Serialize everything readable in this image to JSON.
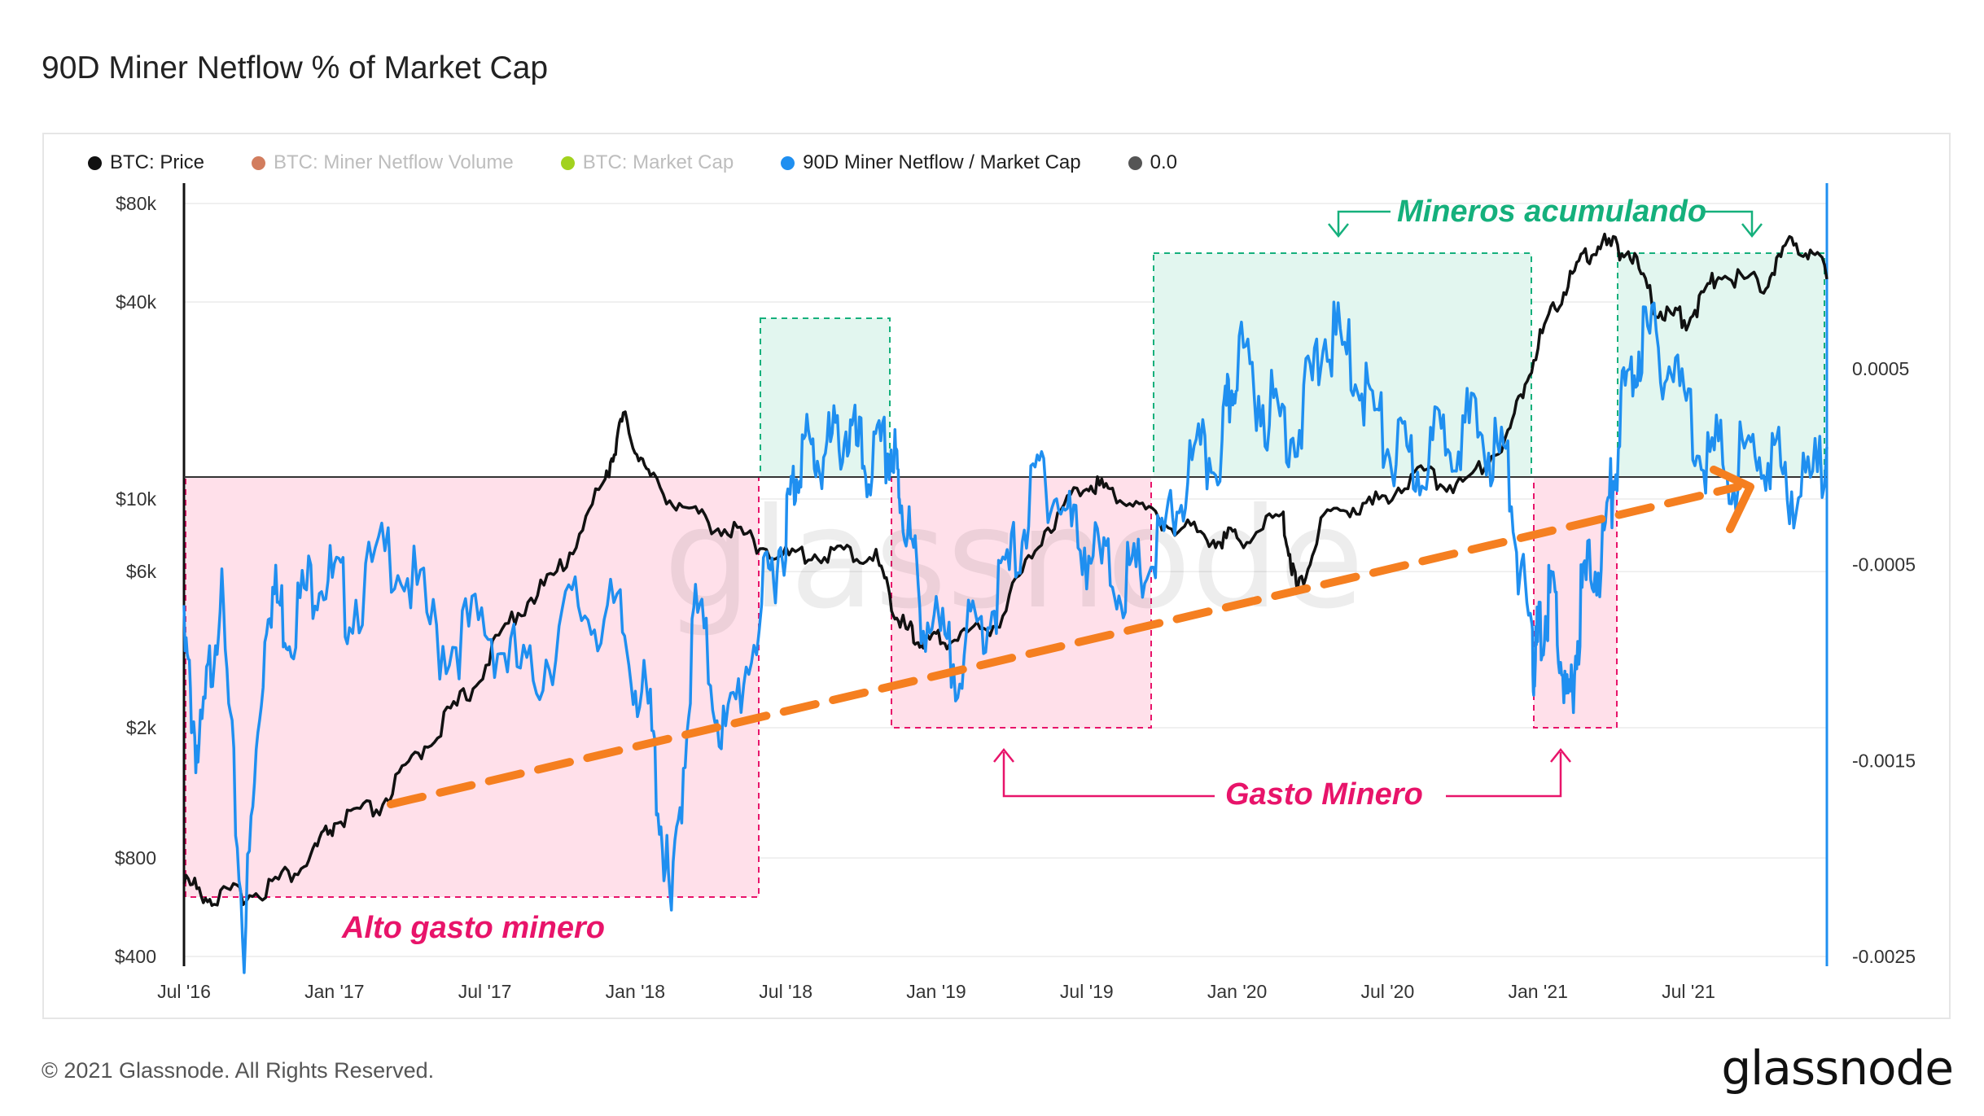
{
  "title": "90D Miner Netflow % of Market Cap",
  "legend": [
    {
      "label": "BTC: Price",
      "color": "#111111",
      "faded": false
    },
    {
      "label": "BTC: Miner Netflow Volume",
      "color": "#d27d5e",
      "faded": true
    },
    {
      "label": "BTC: Market Cap",
      "color": "#a2d21e",
      "faded": true
    },
    {
      "label": "90D Miner Netflow / Market Cap",
      "color": "#1f8ff0",
      "faded": false
    },
    {
      "label": "0.0",
      "color": "#555555",
      "faded": false
    }
  ],
  "footer": "© 2021 Glassnode. All Rights Reserved.",
  "brand": "glassnode",
  "watermark": "glassnode",
  "annotations": {
    "accumulating": "Mineros acumulando",
    "spending": "Gasto Minero",
    "high_spending": "Alto gasto minero"
  },
  "colors": {
    "price": "#111111",
    "netflow": "#1f8ff0",
    "accumulate": "#15b07c",
    "spend": "#e8146a",
    "trend": "#f57f20"
  },
  "chart_data": {
    "type": "line",
    "x_ticks": [
      "Jul '16",
      "Jan '17",
      "Jul '17",
      "Jan '18",
      "Jul '18",
      "Jan '19",
      "Jul '19",
      "Jan '20",
      "Jul '20",
      "Jan '21",
      "Jul '21"
    ],
    "y_left": {
      "scale": "log",
      "ticks": [
        "$80k",
        "$40k",
        "$10k",
        "$6k",
        "$2k",
        "$800",
        "$400"
      ],
      "tick_values": [
        80000,
        40000,
        10000,
        6000,
        2000,
        800,
        400
      ],
      "range": [
        400,
        80000
      ]
    },
    "y_right": {
      "ticks": [
        "0.0005",
        "-0.0005",
        "-0.0015",
        "-0.0025"
      ],
      "tick_values": [
        0.0005,
        -0.0005,
        -0.0015,
        -0.0025
      ],
      "range": [
        -0.0025,
        0.0012
      ]
    },
    "series": [
      {
        "name": "BTC: Price",
        "axis": "left",
        "x": [
          2016.5,
          2016.6,
          2016.75,
          2016.9,
          2017.0,
          2017.15,
          2017.3,
          2017.45,
          2017.6,
          2017.75,
          2017.9,
          2017.96,
          2018.05,
          2018.2,
          2018.35,
          2018.5,
          2018.65,
          2018.8,
          2018.88,
          2018.95,
          2019.05,
          2019.2,
          2019.35,
          2019.5,
          2019.6,
          2019.75,
          2019.9,
          2020.0,
          2020.15,
          2020.2,
          2020.3,
          2020.45,
          2020.6,
          2020.75,
          2020.9,
          2021.0,
          2021.1,
          2021.2,
          2021.3,
          2021.4,
          2021.5,
          2021.6,
          2021.75,
          2021.85,
          2021.96
        ],
        "values": [
          650,
          580,
          610,
          730,
          980,
          1100,
          1700,
          2500,
          4300,
          5800,
          11000,
          17000,
          11000,
          8500,
          7500,
          6400,
          6600,
          6400,
          4000,
          3500,
          3600,
          4000,
          7500,
          11000,
          10000,
          8200,
          7400,
          7200,
          8500,
          5000,
          8800,
          9200,
          11500,
          10600,
          15000,
          29000,
          45000,
          58000,
          55000,
          36000,
          34000,
          47000,
          44000,
          60000,
          47000
        ]
      },
      {
        "name": "90D Miner Netflow / Market Cap",
        "axis": "right",
        "x": [
          2016.5,
          2016.55,
          2016.62,
          2016.7,
          2016.78,
          2016.85,
          2016.95,
          2017.05,
          2017.2,
          2017.35,
          2017.5,
          2017.65,
          2017.8,
          2017.95,
          2018.05,
          2018.12,
          2018.2,
          2018.3,
          2018.42,
          2018.5,
          2018.55,
          2018.62,
          2018.7,
          2018.77,
          2018.85,
          2018.88,
          2018.95,
          2019.05,
          2019.15,
          2019.25,
          2019.35,
          2019.45,
          2019.55,
          2019.65,
          2019.75,
          2019.85,
          2019.95,
          2020.0,
          2020.1,
          2020.2,
          2020.3,
          2020.4,
          2020.5,
          2020.6,
          2020.7,
          2020.8,
          2020.9,
          2020.98,
          2021.0,
          2021.05,
          2021.1,
          2021.15,
          2021.22,
          2021.28,
          2021.35,
          2021.45,
          2021.55,
          2021.65,
          2021.75,
          2021.85,
          2021.96
        ],
        "values": [
          -0.0008,
          -0.0014,
          -0.0005,
          -0.0023,
          -0.0005,
          -0.0007,
          -0.0004,
          -0.0006,
          -0.0003,
          -0.0008,
          -0.0007,
          -0.001,
          -0.0006,
          -0.0007,
          -0.0012,
          -0.0022,
          -0.0006,
          -0.0013,
          -0.0006,
          -0.0002,
          0.0002,
          0.00015,
          0.0003,
          0.0001,
          0.0002,
          0.0,
          -0.0006,
          -0.0009,
          -0.0007,
          -0.0004,
          0.0001,
          -0.0002,
          -0.0004,
          -0.0005,
          -0.0003,
          0.0001,
          0.0002,
          0.0007,
          0.0004,
          0.0003,
          0.0008,
          0.0006,
          0.0002,
          0.0001,
          0.0003,
          0.0003,
          0.0001,
          -0.0009,
          -0.0008,
          -0.0005,
          -0.0012,
          -0.0005,
          -0.0003,
          0.0004,
          0.0008,
          0.0006,
          0.0002,
          0.0001,
          0.0002,
          0.0,
          0.0001
        ]
      }
    ],
    "zero_line": 0.0
  }
}
